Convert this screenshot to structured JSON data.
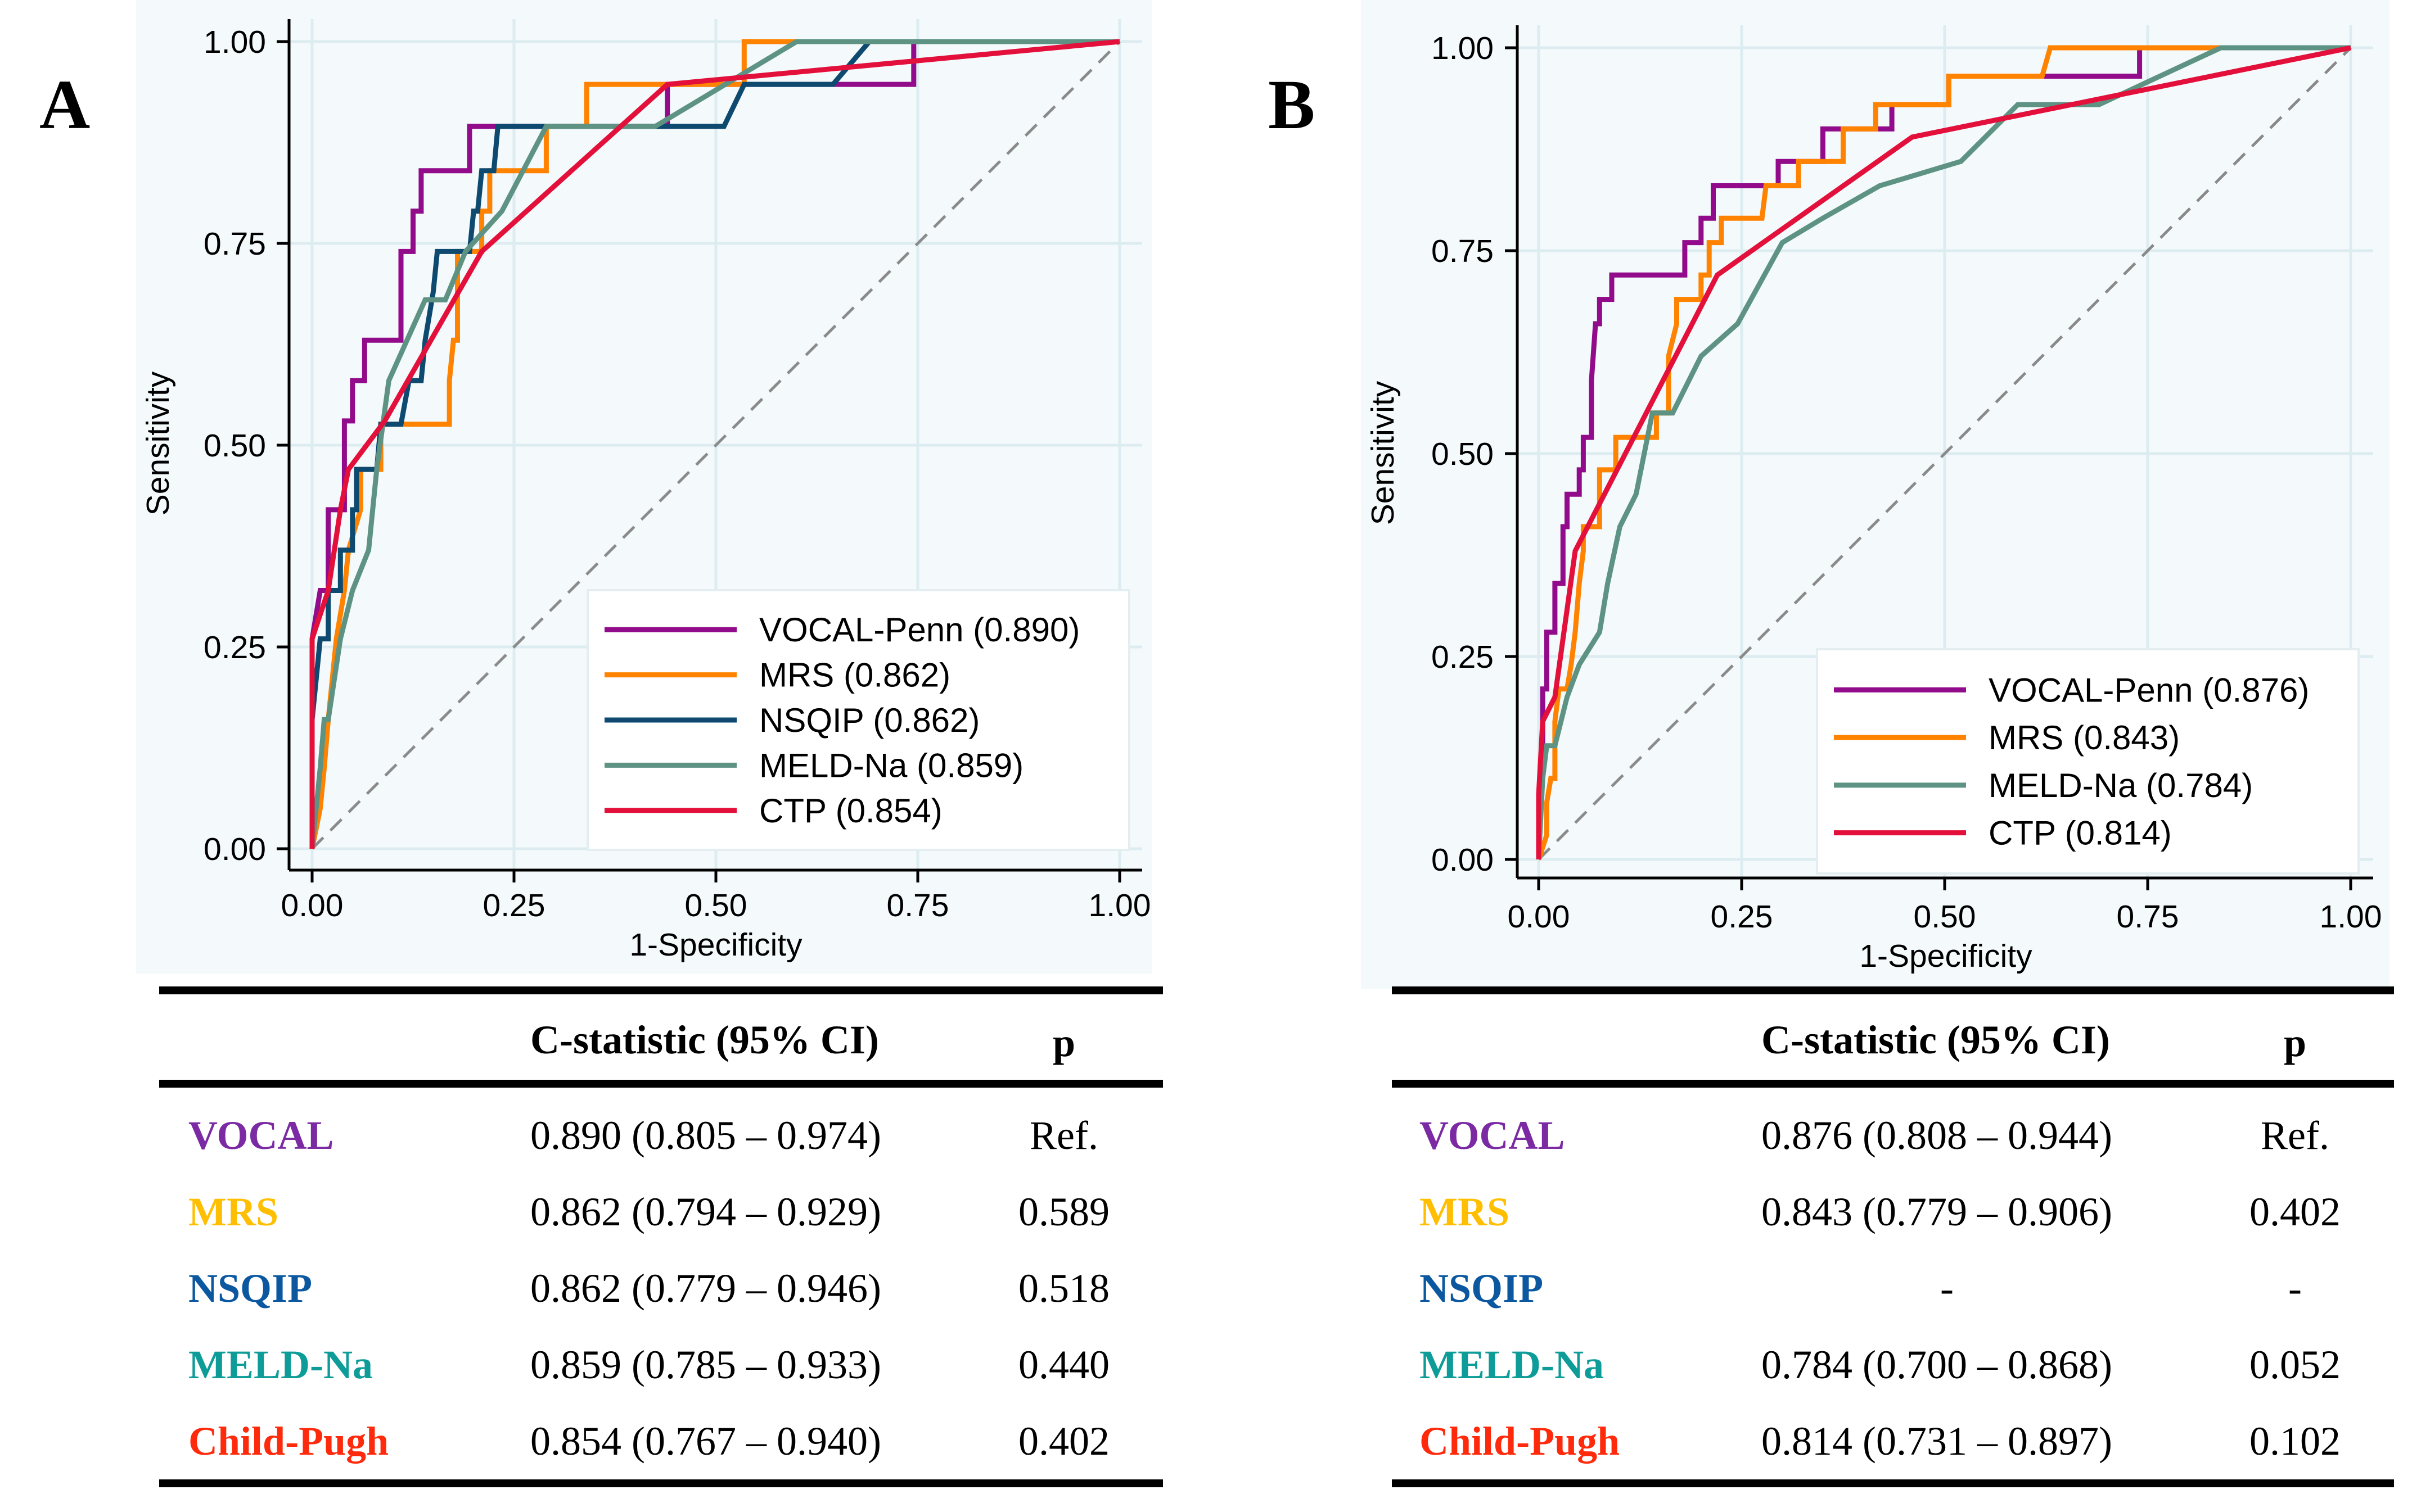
{
  "panels": [
    {
      "label": "A"
    },
    {
      "label": "B"
    }
  ],
  "chart_data": [
    {
      "type": "line",
      "xlabel": "1-Specificity",
      "ylabel": "Sensitivity",
      "xlim": [
        0,
        1
      ],
      "ylim": [
        0,
        1
      ],
      "xticks": [
        "0.00",
        "0.25",
        "0.50",
        "0.75",
        "1.00"
      ],
      "yticks": [
        "0.00",
        "0.25",
        "0.50",
        "0.75",
        "1.00"
      ],
      "grid": true,
      "legend_position": "bottom-right",
      "reference_line": "diagonal dashed",
      "series": [
        {
          "name": "VOCAL-Penn (0.890)",
          "color": "#920b8a",
          "points": [
            [
              0,
              0
            ],
            [
              0,
              0.26
            ],
            [
              0.01,
              0.32
            ],
            [
              0.02,
              0.32
            ],
            [
              0.02,
              0.42
            ],
            [
              0.04,
              0.42
            ],
            [
              0.04,
              0.53
            ],
            [
              0.05,
              0.53
            ],
            [
              0.05,
              0.58
            ],
            [
              0.065,
              0.58
            ],
            [
              0.065,
              0.63
            ],
            [
              0.11,
              0.63
            ],
            [
              0.11,
              0.74
            ],
            [
              0.125,
              0.74
            ],
            [
              0.125,
              0.79
            ],
            [
              0.135,
              0.79
            ],
            [
              0.135,
              0.84
            ],
            [
              0.195,
              0.84
            ],
            [
              0.195,
              0.895
            ],
            [
              0.44,
              0.895
            ],
            [
              0.44,
              0.947
            ],
            [
              0.745,
              0.947
            ],
            [
              0.745,
              1
            ],
            [
              1,
              1
            ]
          ]
        },
        {
          "name": "MRS (0.862)",
          "color": "#ff8300",
          "points": [
            [
              0,
              0
            ],
            [
              0.01,
              0.05
            ],
            [
              0.015,
              0.1
            ],
            [
              0.02,
              0.16
            ],
            [
              0.025,
              0.21
            ],
            [
              0.03,
              0.26
            ],
            [
              0.04,
              0.32
            ],
            [
              0.045,
              0.37
            ],
            [
              0.06,
              0.42
            ],
            [
              0.06,
              0.47
            ],
            [
              0.085,
              0.47
            ],
            [
              0.085,
              0.526
            ],
            [
              0.17,
              0.526
            ],
            [
              0.17,
              0.58
            ],
            [
              0.175,
              0.63
            ],
            [
              0.18,
              0.63
            ],
            [
              0.18,
              0.74
            ],
            [
              0.21,
              0.74
            ],
            [
              0.21,
              0.79
            ],
            [
              0.22,
              0.79
            ],
            [
              0.22,
              0.84
            ],
            [
              0.29,
              0.84
            ],
            [
              0.29,
              0.895
            ],
            [
              0.34,
              0.895
            ],
            [
              0.34,
              0.947
            ],
            [
              0.535,
              0.947
            ],
            [
              0.535,
              1
            ],
            [
              1,
              1
            ]
          ]
        },
        {
          "name": "NSQIP (0.862)",
          "color": "#0e4a70",
          "points": [
            [
              0,
              0
            ],
            [
              0,
              0.16
            ],
            [
              0.01,
              0.26
            ],
            [
              0.02,
              0.26
            ],
            [
              0.02,
              0.32
            ],
            [
              0.035,
              0.32
            ],
            [
              0.035,
              0.37
            ],
            [
              0.05,
              0.37
            ],
            [
              0.05,
              0.42
            ],
            [
              0.055,
              0.42
            ],
            [
              0.055,
              0.47
            ],
            [
              0.08,
              0.47
            ],
            [
              0.085,
              0.526
            ],
            [
              0.11,
              0.526
            ],
            [
              0.12,
              0.58
            ],
            [
              0.135,
              0.58
            ],
            [
              0.14,
              0.63
            ],
            [
              0.15,
              0.69
            ],
            [
              0.155,
              0.74
            ],
            [
              0.195,
              0.74
            ],
            [
              0.2,
              0.79
            ],
            [
              0.205,
              0.79
            ],
            [
              0.21,
              0.84
            ],
            [
              0.225,
              0.84
            ],
            [
              0.23,
              0.895
            ],
            [
              0.51,
              0.895
            ],
            [
              0.535,
              0.947
            ],
            [
              0.645,
              0.947
            ],
            [
              0.69,
              1
            ],
            [
              1,
              1
            ]
          ]
        },
        {
          "name": "MELD-Na (0.859)",
          "color": "#5e9383",
          "points": [
            [
              0,
              0
            ],
            [
              0.01,
              0.1
            ],
            [
              0.015,
              0.16
            ],
            [
              0.02,
              0.16
            ],
            [
              0.035,
              0.26
            ],
            [
              0.05,
              0.32
            ],
            [
              0.07,
              0.37
            ],
            [
              0.08,
              0.47
            ],
            [
              0.095,
              0.58
            ],
            [
              0.14,
              0.68
            ],
            [
              0.165,
              0.68
            ],
            [
              0.19,
              0.74
            ],
            [
              0.235,
              0.79
            ],
            [
              0.29,
              0.895
            ],
            [
              0.425,
              0.895
            ],
            [
              0.6,
              1
            ],
            [
              1,
              1
            ]
          ]
        },
        {
          "name": "CTP (0.854)",
          "color": "#e3103c",
          "points": [
            [
              0,
              0
            ],
            [
              0,
              0.26
            ],
            [
              0.02,
              0.32
            ],
            [
              0.035,
              0.42
            ],
            [
              0.045,
              0.47
            ],
            [
              0.09,
              0.53
            ],
            [
              0.21,
              0.74
            ],
            [
              0.44,
              0.947
            ],
            [
              1,
              1
            ]
          ]
        }
      ]
    },
    {
      "type": "line",
      "xlabel": "1-Specificity",
      "ylabel": "Sensitivity",
      "xlim": [
        0,
        1
      ],
      "ylim": [
        0,
        1
      ],
      "xticks": [
        "0.00",
        "0.25",
        "0.50",
        "0.75",
        "1.00"
      ],
      "yticks": [
        "0.00",
        "0.25",
        "0.50",
        "0.75",
        "1.00"
      ],
      "grid": true,
      "legend_position": "bottom-right",
      "reference_line": "diagonal dashed",
      "series": [
        {
          "name": "VOCAL-Penn (0.876)",
          "color": "#920b8a",
          "points": [
            [
              0,
              0
            ],
            [
              0,
              0.07
            ],
            [
              0.005,
              0.14
            ],
            [
              0.005,
              0.21
            ],
            [
              0.01,
              0.21
            ],
            [
              0.01,
              0.28
            ],
            [
              0.02,
              0.28
            ],
            [
              0.02,
              0.34
            ],
            [
              0.03,
              0.34
            ],
            [
              0.03,
              0.41
            ],
            [
              0.035,
              0.41
            ],
            [
              0.035,
              0.45
            ],
            [
              0.05,
              0.45
            ],
            [
              0.05,
              0.48
            ],
            [
              0.055,
              0.48
            ],
            [
              0.055,
              0.52
            ],
            [
              0.065,
              0.52
            ],
            [
              0.065,
              0.59
            ],
            [
              0.07,
              0.66
            ],
            [
              0.075,
              0.66
            ],
            [
              0.075,
              0.69
            ],
            [
              0.09,
              0.69
            ],
            [
              0.09,
              0.72
            ],
            [
              0.18,
              0.72
            ],
            [
              0.18,
              0.76
            ],
            [
              0.2,
              0.76
            ],
            [
              0.2,
              0.79
            ],
            [
              0.215,
              0.79
            ],
            [
              0.215,
              0.83
            ],
            [
              0.295,
              0.83
            ],
            [
              0.295,
              0.86
            ],
            [
              0.35,
              0.86
            ],
            [
              0.35,
              0.9
            ],
            [
              0.435,
              0.9
            ],
            [
              0.435,
              0.93
            ],
            [
              0.505,
              0.93
            ],
            [
              0.505,
              0.965
            ],
            [
              0.74,
              0.965
            ],
            [
              0.74,
              1
            ],
            [
              1,
              1
            ]
          ]
        },
        {
          "name": "MRS (0.843)",
          "color": "#ff8300",
          "points": [
            [
              0,
              0
            ],
            [
              0.01,
              0.03
            ],
            [
              0.01,
              0.07
            ],
            [
              0.015,
              0.1
            ],
            [
              0.02,
              0.1
            ],
            [
              0.02,
              0.17
            ],
            [
              0.025,
              0.21
            ],
            [
              0.035,
              0.21
            ],
            [
              0.04,
              0.24
            ],
            [
              0.045,
              0.28
            ],
            [
              0.05,
              0.34
            ],
            [
              0.055,
              0.38
            ],
            [
              0.055,
              0.41
            ],
            [
              0.075,
              0.41
            ],
            [
              0.075,
              0.48
            ],
            [
              0.095,
              0.48
            ],
            [
              0.095,
              0.52
            ],
            [
              0.145,
              0.52
            ],
            [
              0.145,
              0.55
            ],
            [
              0.16,
              0.55
            ],
            [
              0.16,
              0.62
            ],
            [
              0.17,
              0.66
            ],
            [
              0.17,
              0.69
            ],
            [
              0.2,
              0.69
            ],
            [
              0.2,
              0.72
            ],
            [
              0.21,
              0.72
            ],
            [
              0.21,
              0.76
            ],
            [
              0.225,
              0.76
            ],
            [
              0.225,
              0.79
            ],
            [
              0.275,
              0.79
            ],
            [
              0.28,
              0.83
            ],
            [
              0.32,
              0.83
            ],
            [
              0.32,
              0.86
            ],
            [
              0.375,
              0.86
            ],
            [
              0.375,
              0.9
            ],
            [
              0.415,
              0.9
            ],
            [
              0.415,
              0.93
            ],
            [
              0.505,
              0.93
            ],
            [
              0.505,
              0.965
            ],
            [
              0.62,
              0.965
            ],
            [
              0.63,
              1
            ],
            [
              1,
              1
            ]
          ]
        },
        {
          "name": "MELD-Na (0.784)",
          "color": "#5e9383",
          "points": [
            [
              0,
              0
            ],
            [
              0.005,
              0.1
            ],
            [
              0.01,
              0.14
            ],
            [
              0.02,
              0.14
            ],
            [
              0.035,
              0.2
            ],
            [
              0.05,
              0.24
            ],
            [
              0.075,
              0.28
            ],
            [
              0.085,
              0.34
            ],
            [
              0.1,
              0.41
            ],
            [
              0.12,
              0.45
            ],
            [
              0.14,
              0.55
            ],
            [
              0.165,
              0.55
            ],
            [
              0.2,
              0.62
            ],
            [
              0.245,
              0.66
            ],
            [
              0.3,
              0.76
            ],
            [
              0.35,
              0.79
            ],
            [
              0.42,
              0.83
            ],
            [
              0.52,
              0.86
            ],
            [
              0.59,
              0.93
            ],
            [
              0.69,
              0.93
            ],
            [
              0.84,
              1
            ],
            [
              1,
              1
            ]
          ]
        },
        {
          "name": "CTP (0.814)",
          "color": "#e3103c",
          "points": [
            [
              0,
              0
            ],
            [
              0,
              0.08
            ],
            [
              0.005,
              0.17
            ],
            [
              0.02,
              0.2
            ],
            [
              0.045,
              0.38
            ],
            [
              0.22,
              0.72
            ],
            [
              0.46,
              0.89
            ],
            [
              1,
              1
            ]
          ]
        }
      ]
    }
  ],
  "tables": [
    {
      "headers": [
        "",
        "C-statistic (95% CI)",
        "p"
      ],
      "rows": [
        {
          "name": "VOCAL",
          "color": "#7b2aa3",
          "cstat": "0.890 (0.805 – 0.974)",
          "p": "Ref."
        },
        {
          "name": "MRS",
          "color": "#ffbf00",
          "cstat": "0.862 (0.794 – 0.929)",
          "p": "0.589"
        },
        {
          "name": "NSQIP",
          "color": "#0b58a0",
          "cstat": "0.862 (0.779 – 0.946)",
          "p": "0.518"
        },
        {
          "name": "MELD-Na",
          "color": "#0e9c98",
          "cstat": "0.859 (0.785 – 0.933)",
          "p": "0.440"
        },
        {
          "name": "Child-Pugh",
          "color": "#ff2a0c",
          "cstat": "0.854 (0.767 – 0.940)",
          "p": "0.402"
        }
      ]
    },
    {
      "headers": [
        "",
        "C-statistic (95% CI)",
        "p"
      ],
      "rows": [
        {
          "name": "VOCAL",
          "color": "#7b2aa3",
          "cstat": "0.876 (0.808 – 0.944)",
          "p": "Ref."
        },
        {
          "name": "MRS",
          "color": "#ffbf00",
          "cstat": "0.843 (0.779 – 0.906)",
          "p": "0.402"
        },
        {
          "name": "NSQIP",
          "color": "#0b58a0",
          "cstat": "-",
          "p": "-"
        },
        {
          "name": "MELD-Na",
          "color": "#0e9c98",
          "cstat": "0.784 (0.700 – 0.868)",
          "p": "0.052"
        },
        {
          "name": "Child-Pugh",
          "color": "#ff2a0c",
          "cstat": "0.814 (0.731 – 0.897)",
          "p": "0.102"
        }
      ]
    }
  ]
}
